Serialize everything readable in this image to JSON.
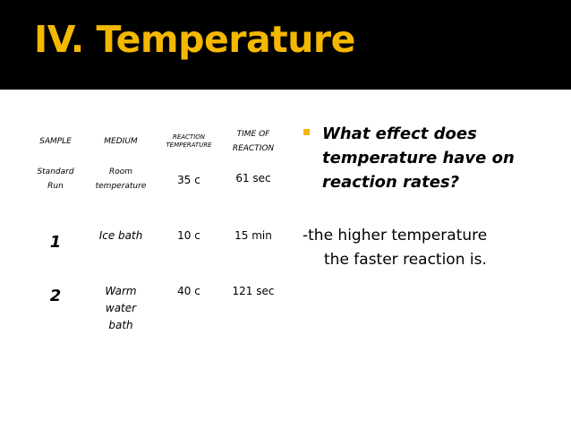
{
  "slide": {
    "title": "IV. Temperature",
    "accent_color": "#f5b800",
    "title_bar_color": "#000000",
    "bullet_icon": "square-bullet"
  },
  "table": {
    "headers": {
      "sample": "SAMPLE",
      "medium": "MEDIUM",
      "reaction_temp_line1": "REACTION",
      "reaction_temp_line2": "TEMPERATURE",
      "time_line1": "TIME OF",
      "time_line2": "REACTION"
    },
    "rows": [
      {
        "sample_line1": "Standard",
        "sample_line2": "Run",
        "medium_line1": "Room",
        "medium_line2": "temperature",
        "temp": "35 c",
        "time": "61 sec"
      },
      {
        "sample": "1",
        "medium": "Ice bath",
        "temp": "10 c",
        "time": "15 min"
      },
      {
        "sample": "2",
        "medium_line1": "Warm",
        "medium_line2": "water",
        "medium_line3": "bath",
        "temp": "40 c",
        "time": "121 sec"
      }
    ]
  },
  "right": {
    "question_line1": "What effect does",
    "question_line2": "temperature have on",
    "question_line3": "reaction rates?",
    "answer_line1": "-the higher temperature",
    "answer_line2": "the faster reaction is."
  }
}
